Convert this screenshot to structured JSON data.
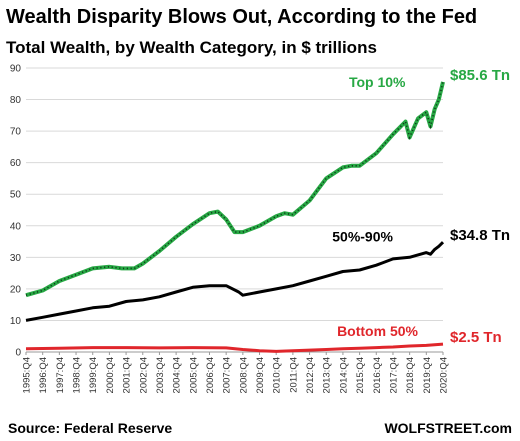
{
  "title": "Wealth Disparity Blows Out, According to the Fed",
  "subtitle": "Total Wealth, by Wealth Category, in $ trillions",
  "source": "Source: Federal Reserve",
  "brand": "WOLFSTREET.com",
  "chart_data": {
    "type": "line",
    "ylim": [
      0,
      90
    ],
    "yticks": [
      0,
      10,
      20,
      30,
      40,
      50,
      60,
      70,
      80,
      90
    ],
    "grid": true,
    "x_range": [
      "1995:Q4",
      "2020:Q4"
    ],
    "x_tick_labels": [
      "1995:Q4",
      "1996:Q4",
      "1997:Q4",
      "1998:Q4",
      "1999:Q4",
      "2000:Q4",
      "2001:Q4",
      "2002:Q4",
      "2003:Q4",
      "2004:Q4",
      "2005:Q4",
      "2006:Q4",
      "2007:Q4",
      "2008:Q4",
      "2009:Q4",
      "2010:Q4",
      "2011:Q4",
      "2012:Q4",
      "2013:Q4",
      "2014:Q4",
      "2015:Q4",
      "2016:Q4",
      "2017:Q4",
      "2018:Q4",
      "2019:Q4",
      "2020:Q4"
    ],
    "series": [
      {
        "name": "Top 10%",
        "color": "#27a844",
        "end_label": "$85.6 Tn",
        "values": [
          [
            1995.75,
            18
          ],
          [
            1996.75,
            19.5
          ],
          [
            1997.75,
            22.5
          ],
          [
            1998.75,
            24.5
          ],
          [
            1999.75,
            26.5
          ],
          [
            2000.75,
            27
          ],
          [
            2001.5,
            26.5
          ],
          [
            2002.25,
            26.5
          ],
          [
            2002.75,
            28
          ],
          [
            2003.75,
            32
          ],
          [
            2004.75,
            36.5
          ],
          [
            2005.75,
            40.5
          ],
          [
            2006.75,
            44
          ],
          [
            2007.25,
            44.5
          ],
          [
            2007.75,
            42
          ],
          [
            2008.25,
            38
          ],
          [
            2008.75,
            38
          ],
          [
            2009.75,
            40
          ],
          [
            2010.75,
            43
          ],
          [
            2011.25,
            44
          ],
          [
            2011.75,
            43.5
          ],
          [
            2012.75,
            48
          ],
          [
            2013.75,
            55
          ],
          [
            2014.75,
            58.5
          ],
          [
            2015.25,
            59
          ],
          [
            2015.75,
            59
          ],
          [
            2016.75,
            63
          ],
          [
            2017.75,
            69
          ],
          [
            2018.5,
            73
          ],
          [
            2018.75,
            68
          ],
          [
            2019.25,
            74
          ],
          [
            2019.75,
            76
          ],
          [
            2020.0,
            71.5
          ],
          [
            2020.25,
            77
          ],
          [
            2020.5,
            80
          ],
          [
            2020.75,
            85.6
          ]
        ]
      },
      {
        "name": "50%-90%",
        "color": "#000000",
        "end_label": "$34.8 Tn",
        "values": [
          [
            1995.75,
            10
          ],
          [
            1996.75,
            11
          ],
          [
            1997.75,
            12
          ],
          [
            1998.75,
            13
          ],
          [
            1999.75,
            14
          ],
          [
            2000.75,
            14.5
          ],
          [
            2001.75,
            16
          ],
          [
            2002.75,
            16.5
          ],
          [
            2003.75,
            17.5
          ],
          [
            2004.75,
            19
          ],
          [
            2005.75,
            20.5
          ],
          [
            2006.75,
            21
          ],
          [
            2007.75,
            21
          ],
          [
            2008.5,
            19
          ],
          [
            2008.75,
            18
          ],
          [
            2009.75,
            19
          ],
          [
            2010.75,
            20
          ],
          [
            2011.75,
            21
          ],
          [
            2012.75,
            22.5
          ],
          [
            2013.75,
            24
          ],
          [
            2014.75,
            25.5
          ],
          [
            2015.75,
            26
          ],
          [
            2016.75,
            27.5
          ],
          [
            2017.75,
            29.5
          ],
          [
            2018.75,
            30
          ],
          [
            2019.75,
            31.5
          ],
          [
            2020.0,
            31
          ],
          [
            2020.25,
            32.5
          ],
          [
            2020.5,
            33.5
          ],
          [
            2020.75,
            34.8
          ]
        ]
      },
      {
        "name": "Bottom 50%",
        "color": "#e0262b",
        "end_label": "$2.5 Tn",
        "values": [
          [
            1995.75,
            1.0
          ],
          [
            1997.75,
            1.2
          ],
          [
            1999.75,
            1.4
          ],
          [
            2001.75,
            1.4
          ],
          [
            2003.75,
            1.3
          ],
          [
            2005.75,
            1.4
          ],
          [
            2007.75,
            1.3
          ],
          [
            2008.75,
            0.8
          ],
          [
            2009.75,
            0.4
          ],
          [
            2010.75,
            0.2
          ],
          [
            2011.75,
            0.4
          ],
          [
            2012.75,
            0.6
          ],
          [
            2013.75,
            0.8
          ],
          [
            2014.75,
            1.0
          ],
          [
            2015.75,
            1.2
          ],
          [
            2016.75,
            1.4
          ],
          [
            2017.75,
            1.6
          ],
          [
            2018.75,
            1.9
          ],
          [
            2019.75,
            2.1
          ],
          [
            2020.75,
            2.5
          ]
        ]
      }
    ]
  }
}
